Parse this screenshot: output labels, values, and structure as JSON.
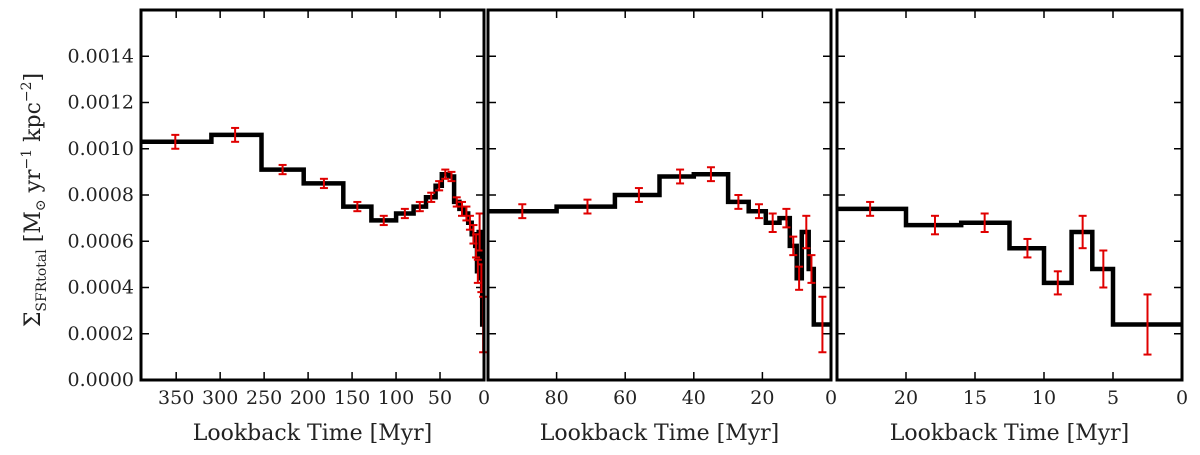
{
  "chart_data": {
    "type": "line",
    "y_ticks": [
      "0.0000",
      "0.0002",
      "0.0004",
      "0.0006",
      "0.0008",
      "0.0010",
      "0.0012",
      "0.0014"
    ],
    "y_tick_values": [
      0,
      0.0002,
      0.0004,
      0.0006,
      0.0008,
      0.001,
      0.0012,
      0.0014
    ],
    "ylim": [
      0,
      0.0016
    ],
    "ylabel": {
      "prefix": "Σ",
      "sub": "SFRtotal",
      "unit_open": " [M",
      "sun": "⊙",
      "yr": " yr",
      "yr_exp": "−1",
      "kpc": " kpc",
      "kpc_exp": "−2",
      "close": "]"
    },
    "panels": [
      {
        "xlabel": "Lookback Time [Myr]",
        "xlim": [
          390,
          0
        ],
        "x_ticks": [
          "350",
          "300",
          "250",
          "200",
          "150",
          "100",
          "50",
          "0"
        ],
        "x_tick_values": [
          350,
          300,
          250,
          200,
          150,
          100,
          50,
          0
        ],
        "steps": [
          {
            "x0": 390,
            "x1": 310,
            "y": 0.00103
          },
          {
            "x0": 310,
            "x1": 253,
            "y": 0.00106
          },
          {
            "x0": 253,
            "x1": 205,
            "y": 0.00091
          },
          {
            "x0": 205,
            "x1": 160,
            "y": 0.00085
          },
          {
            "x0": 160,
            "x1": 128,
            "y": 0.00075
          },
          {
            "x0": 128,
            "x1": 100,
            "y": 0.00069
          },
          {
            "x0": 100,
            "x1": 80,
            "y": 0.00072
          },
          {
            "x0": 80,
            "x1": 66,
            "y": 0.00075
          },
          {
            "x0": 66,
            "x1": 55,
            "y": 0.00079
          },
          {
            "x0": 55,
            "x1": 48,
            "y": 0.00084
          },
          {
            "x0": 48,
            "x1": 40,
            "y": 0.00089
          },
          {
            "x0": 40,
            "x1": 34,
            "y": 0.00088
          },
          {
            "x0": 34,
            "x1": 28,
            "y": 0.00077
          },
          {
            "x0": 28,
            "x1": 22,
            "y": 0.00074
          },
          {
            "x0": 22,
            "x1": 18,
            "y": 0.00072
          },
          {
            "x0": 18,
            "x1": 14,
            "y": 0.00068
          },
          {
            "x0": 14,
            "x1": 10,
            "y": 0.00063
          },
          {
            "x0": 10,
            "x1": 8,
            "y": 0.00058
          },
          {
            "x0": 8,
            "x1": 6,
            "y": 0.00047
          },
          {
            "x0": 6,
            "x1": 4,
            "y": 0.00064
          },
          {
            "x0": 4,
            "x1": 2,
            "y": 0.00044
          },
          {
            "x0": 2,
            "x1": 0,
            "y": 0.00024
          }
        ],
        "errors": [
          {
            "x": 351,
            "y": 0.00103,
            "err": 3e-05
          },
          {
            "x": 283,
            "y": 0.00106,
            "err": 3e-05
          },
          {
            "x": 229,
            "y": 0.00091,
            "err": 2e-05
          },
          {
            "x": 182,
            "y": 0.00085,
            "err": 2e-05
          },
          {
            "x": 144,
            "y": 0.00075,
            "err": 2e-05
          },
          {
            "x": 114,
            "y": 0.00069,
            "err": 2e-05
          },
          {
            "x": 90,
            "y": 0.00072,
            "err": 2e-05
          },
          {
            "x": 73,
            "y": 0.00075,
            "err": 2e-05
          },
          {
            "x": 60,
            "y": 0.00079,
            "err": 2e-05
          },
          {
            "x": 51,
            "y": 0.00084,
            "err": 2e-05
          },
          {
            "x": 44,
            "y": 0.00089,
            "err": 2e-05
          },
          {
            "x": 37,
            "y": 0.00088,
            "err": 2e-05
          },
          {
            "x": 31,
            "y": 0.00077,
            "err": 2e-05
          },
          {
            "x": 25,
            "y": 0.00074,
            "err": 3e-05
          },
          {
            "x": 20,
            "y": 0.00072,
            "err": 3e-05
          },
          {
            "x": 16,
            "y": 0.00068,
            "err": 3e-05
          },
          {
            "x": 12,
            "y": 0.00063,
            "err": 4e-05
          },
          {
            "x": 9,
            "y": 0.00058,
            "err": 5e-05
          },
          {
            "x": 7,
            "y": 0.00047,
            "err": 5e-05
          },
          {
            "x": 5,
            "y": 0.00064,
            "err": 8e-05
          },
          {
            "x": 3,
            "y": 0.00044,
            "err": 6e-05
          },
          {
            "x": 1,
            "y": 0.00024,
            "err": 0.00012
          }
        ]
      },
      {
        "xlabel": "Lookback Time [Myr]",
        "xlim": [
          100,
          0
        ],
        "x_ticks": [
          "80",
          "60",
          "40",
          "20",
          "0"
        ],
        "x_tick_values": [
          80,
          60,
          40,
          20,
          0
        ],
        "steps": [
          {
            "x0": 100,
            "x1": 80,
            "y": 0.00073
          },
          {
            "x0": 80,
            "x1": 63,
            "y": 0.00075
          },
          {
            "x0": 63,
            "x1": 50,
            "y": 0.0008
          },
          {
            "x0": 50,
            "x1": 40,
            "y": 0.00088
          },
          {
            "x0": 40,
            "x1": 30,
            "y": 0.00089
          },
          {
            "x0": 30,
            "x1": 24,
            "y": 0.00077
          },
          {
            "x0": 24,
            "x1": 19,
            "y": 0.00073
          },
          {
            "x0": 19,
            "x1": 15,
            "y": 0.00068
          },
          {
            "x0": 15,
            "x1": 12,
            "y": 0.0007
          },
          {
            "x0": 12,
            "x1": 10,
            "y": 0.00058
          },
          {
            "x0": 10,
            "x1": 8.5,
            "y": 0.00044
          },
          {
            "x0": 8.5,
            "x1": 6.5,
            "y": 0.00064
          },
          {
            "x0": 6.5,
            "x1": 5,
            "y": 0.00048
          },
          {
            "x0": 5,
            "x1": 0,
            "y": 0.00024
          }
        ],
        "errors": [
          {
            "x": 90,
            "y": 0.00073,
            "err": 3e-05
          },
          {
            "x": 71,
            "y": 0.00075,
            "err": 3e-05
          },
          {
            "x": 56,
            "y": 0.0008,
            "err": 3e-05
          },
          {
            "x": 44,
            "y": 0.00088,
            "err": 3e-05
          },
          {
            "x": 35,
            "y": 0.00089,
            "err": 3e-05
          },
          {
            "x": 27,
            "y": 0.00077,
            "err": 3e-05
          },
          {
            "x": 21,
            "y": 0.00073,
            "err": 3e-05
          },
          {
            "x": 17,
            "y": 0.00068,
            "err": 4e-05
          },
          {
            "x": 13,
            "y": 0.0007,
            "err": 4e-05
          },
          {
            "x": 11,
            "y": 0.00058,
            "err": 4e-05
          },
          {
            "x": 9.3,
            "y": 0.00044,
            "err": 5e-05
          },
          {
            "x": 7.2,
            "y": 0.00064,
            "err": 7e-05
          },
          {
            "x": 5.7,
            "y": 0.00048,
            "err": 6e-05
          },
          {
            "x": 2.5,
            "y": 0.00024,
            "err": 0.00012
          }
        ]
      },
      {
        "xlabel": "Lookback Time [Myr]",
        "xlim": [
          25,
          0
        ],
        "x_ticks": [
          "20",
          "15",
          "10",
          "5",
          "0"
        ],
        "x_tick_values": [
          20,
          15,
          10,
          5,
          0
        ],
        "steps": [
          {
            "x0": 25,
            "x1": 20,
            "y": 0.00074
          },
          {
            "x0": 20,
            "x1": 16,
            "y": 0.00067
          },
          {
            "x0": 16,
            "x1": 12.5,
            "y": 0.00068
          },
          {
            "x0": 12.5,
            "x1": 10,
            "y": 0.00057
          },
          {
            "x0": 10,
            "x1": 8,
            "y": 0.00042
          },
          {
            "x0": 8,
            "x1": 6.5,
            "y": 0.00064
          },
          {
            "x0": 6.5,
            "x1": 5,
            "y": 0.00048
          },
          {
            "x0": 5,
            "x1": 0,
            "y": 0.00024
          }
        ],
        "errors": [
          {
            "x": 22.6,
            "y": 0.00074,
            "err": 3e-05
          },
          {
            "x": 17.9,
            "y": 0.00067,
            "err": 4e-05
          },
          {
            "x": 14.3,
            "y": 0.00068,
            "err": 4e-05
          },
          {
            "x": 11.2,
            "y": 0.00057,
            "err": 4e-05
          },
          {
            "x": 9,
            "y": 0.00042,
            "err": 5e-05
          },
          {
            "x": 7.2,
            "y": 0.00064,
            "err": 7e-05
          },
          {
            "x": 5.7,
            "y": 0.00048,
            "err": 8e-05
          },
          {
            "x": 2.5,
            "y": 0.00024,
            "err": 0.00013
          }
        ]
      }
    ]
  }
}
